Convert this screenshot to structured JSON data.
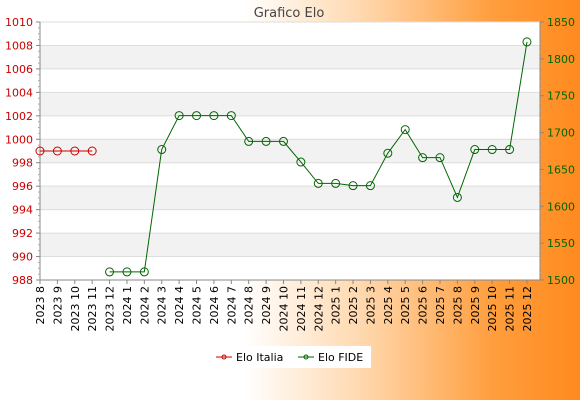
{
  "colors": {
    "italia": "#cc0000",
    "fide": "#006600",
    "left_axis": "#cc0000",
    "right_axis": "#006600",
    "band": "#f2f2f2",
    "grid": "#dddddd"
  },
  "chart_data": {
    "type": "line",
    "title": "Grafico Elo",
    "categories": [
      "2023 8",
      "2023 9",
      "2023 10",
      "2023 11",
      "2023 12",
      "2024 1",
      "2024 2",
      "2024 3",
      "2024 4",
      "2024 5",
      "2024 6",
      "2024 7",
      "2024 8",
      "2024 9",
      "2024 10",
      "2024 11",
      "2024 12",
      "2025 1",
      "2025 2",
      "2025 3",
      "2025 4",
      "2025 5",
      "2025 6",
      "2025 7",
      "2025 8",
      "2025 9",
      "2025 10",
      "2025 11",
      "2025 12"
    ],
    "y_left": {
      "ylim": [
        988,
        1010
      ],
      "ticks": [
        988,
        990,
        992,
        994,
        996,
        998,
        1000,
        1002,
        1004,
        1006,
        1008,
        1010
      ]
    },
    "y_right": {
      "ylim": [
        1500,
        1850
      ],
      "ticks": [
        1500,
        1550,
        1600,
        1650,
        1700,
        1750,
        1800,
        1850
      ]
    },
    "series": [
      {
        "name": "Elo Italia",
        "axis": "left",
        "values": [
          999,
          999,
          999,
          999,
          null,
          null,
          null,
          null,
          null,
          null,
          null,
          null,
          null,
          null,
          null,
          null,
          null,
          null,
          null,
          null,
          null,
          null,
          null,
          null,
          null,
          null,
          null,
          null,
          null
        ]
      },
      {
        "name": "Elo FIDE",
        "axis": "right",
        "values": [
          null,
          null,
          null,
          null,
          1511,
          1511,
          1511,
          1677,
          1723,
          1723,
          1723,
          1723,
          1688,
          1688,
          1688,
          1660,
          1631,
          1631,
          1628,
          1628,
          1672,
          1704,
          1666,
          1666,
          1612,
          1677,
          1677,
          1677,
          1823
        ]
      }
    ],
    "legend": {
      "placement": "bottom-center"
    },
    "grid": true
  }
}
